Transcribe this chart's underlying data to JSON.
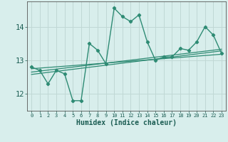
{
  "x": [
    0,
    1,
    2,
    3,
    4,
    5,
    6,
    7,
    8,
    9,
    10,
    11,
    12,
    13,
    14,
    15,
    16,
    17,
    18,
    19,
    20,
    21,
    22,
    23
  ],
  "y_main": [
    12.8,
    12.7,
    12.3,
    12.7,
    12.6,
    11.8,
    11.8,
    13.5,
    13.3,
    12.9,
    14.55,
    14.3,
    14.15,
    14.35,
    13.55,
    13.0,
    13.1,
    13.1,
    13.35,
    13.3,
    13.55,
    14.0,
    13.75,
    13.2
  ],
  "trend_lines": [
    {
      "x0": 0,
      "y0": 12.58,
      "x1": 23,
      "y1": 13.28
    },
    {
      "x0": 0,
      "y0": 12.65,
      "x1": 23,
      "y1": 13.33
    },
    {
      "x0": 0,
      "y0": 12.75,
      "x1": 23,
      "y1": 13.18
    }
  ],
  "line_color": "#2e8b74",
  "bg_color": "#d8eeec",
  "grid_color": "#c0d8d5",
  "ylabel_values": [
    12,
    13,
    14
  ],
  "xlabel": "Humidex (Indice chaleur)",
  "xlim": [
    -0.5,
    23.5
  ],
  "ylim": [
    11.5,
    14.75
  ],
  "title": ""
}
